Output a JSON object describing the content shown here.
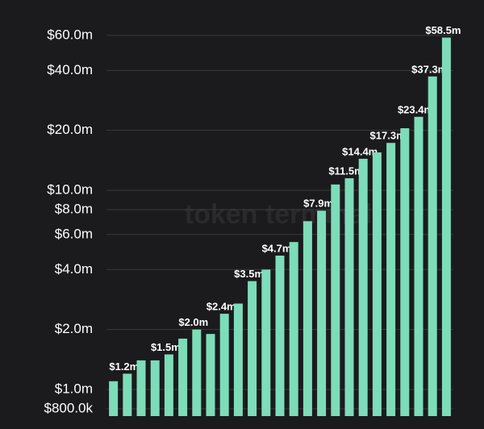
{
  "chart_data": {
    "type": "bar",
    "watermark": "token terminal",
    "log_scale": true,
    "grid": true,
    "color": "#7ddcb9",
    "values": [
      1100000,
      1200000,
      1400000,
      1400000,
      1500000,
      1800000,
      2000000,
      1900000,
      2400000,
      2700000,
      3500000,
      4000000,
      4700000,
      5500000,
      7000000,
      7900000,
      10700000,
      11500000,
      14400000,
      15500000,
      17300000,
      20500000,
      23400000,
      37300000,
      58500000
    ],
    "value_labels": [
      null,
      "$1.2m",
      null,
      null,
      "$1.5m",
      null,
      "$2.0m",
      null,
      "$2.4m",
      null,
      "$3.5m",
      null,
      "$4.7m",
      null,
      null,
      "$7.9m",
      null,
      "$11.5m",
      "$14.4m",
      null,
      "$17.3m",
      null,
      "$23.4m",
      "$37.3m",
      "$58.5m"
    ],
    "ylim": [
      735000,
      80000000
    ],
    "yticks": [
      {
        "value": 800000,
        "label": "$800.0k"
      },
      {
        "value": 1000000,
        "label": "$1.0m"
      },
      {
        "value": 2000000,
        "label": "$2.0m"
      },
      {
        "value": 4000000,
        "label": "$4.0m"
      },
      {
        "value": 6000000,
        "label": "$6.0m"
      },
      {
        "value": 8000000,
        "label": "$8.0m"
      },
      {
        "value": 10000000,
        "label": "$10.0m"
      },
      {
        "value": 20000000,
        "label": "$20.0m"
      },
      {
        "value": 40000000,
        "label": "$40.0m"
      },
      {
        "value": 60000000,
        "label": "$60.0m"
      }
    ]
  }
}
